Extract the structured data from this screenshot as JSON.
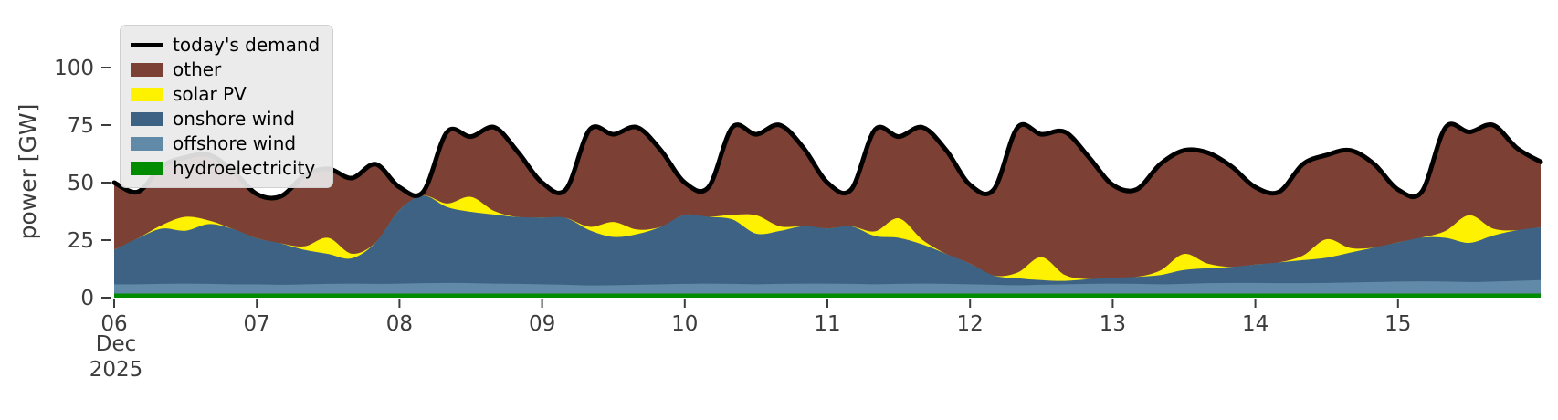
{
  "chart_data": {
    "type": "area",
    "stacked": true,
    "title": "",
    "ylabel": "power [GW]",
    "xlabel_month": "Dec",
    "xlabel_year": "2025",
    "x_start": "2025-12-06T00:00",
    "step_hours": 4,
    "n_points": 61,
    "x_tick_labels": [
      "06",
      "07",
      "08",
      "09",
      "10",
      "11",
      "12",
      "13",
      "14",
      "15"
    ],
    "y_ticks": [
      0,
      25,
      50,
      75,
      100
    ],
    "ylim": [
      0,
      123
    ],
    "grid": false,
    "legend_position": "upper left",
    "demand": {
      "name": "today's demand",
      "color": "#000000",
      "values": [
        50,
        46,
        57,
        61,
        62,
        55,
        45,
        44,
        53,
        56,
        52,
        58,
        48,
        46,
        72,
        70,
        74,
        63,
        50,
        47,
        73,
        71,
        74,
        64,
        50,
        48,
        74,
        71,
        75,
        65,
        50,
        47,
        73,
        70,
        74,
        64,
        49,
        47,
        74,
        71,
        72,
        61,
        49,
        47,
        58,
        64,
        63,
        57,
        48,
        46,
        58,
        62,
        64,
        58,
        47,
        46,
        74,
        72,
        75,
        65,
        59
      ]
    },
    "stacked_series": [
      {
        "name": "hydroelectricity",
        "color": "#008C00",
        "values": [
          1.8,
          1.8,
          1.8,
          1.8,
          1.8,
          1.8,
          1.8,
          1.8,
          1.8,
          1.8,
          1.8,
          1.8,
          1.8,
          1.8,
          1.8,
          1.8,
          1.8,
          1.8,
          1.8,
          1.8,
          1.8,
          1.8,
          1.8,
          1.8,
          1.8,
          1.8,
          1.8,
          1.8,
          1.8,
          1.8,
          1.8,
          1.8,
          1.8,
          1.8,
          1.8,
          1.8,
          1.8,
          1.8,
          1.8,
          1.8,
          1.8,
          1.8,
          1.8,
          1.8,
          1.8,
          1.8,
          1.8,
          1.8,
          1.8,
          1.8,
          1.8,
          1.8,
          1.8,
          1.8,
          1.8,
          1.8,
          1.8,
          1.8,
          1.8,
          1.8,
          1.8
        ]
      },
      {
        "name": "offshore wind",
        "color": "#6189A8",
        "values": [
          4,
          4,
          4.2,
          4.3,
          4.2,
          4,
          4,
          3.8,
          4,
          4.2,
          4.3,
          4.2,
          4.3,
          4.5,
          4.6,
          4.5,
          4.3,
          4.2,
          4,
          3.8,
          3.5,
          3.6,
          3.8,
          4,
          4.2,
          4.3,
          4.2,
          4,
          4.2,
          4.3,
          4.3,
          4.2,
          4,
          4.2,
          4.3,
          4.2,
          4,
          3.8,
          3.6,
          3.8,
          4,
          4.2,
          4.3,
          4.2,
          4,
          4.2,
          4.5,
          4.6,
          4.6,
          4.5,
          4.5,
          4.6,
          4.8,
          5,
          5.2,
          5.3,
          5.2,
          5,
          5.2,
          5.5,
          5.8
        ]
      },
      {
        "name": "onshore wind",
        "color": "#3E6283",
        "values": [
          15,
          20,
          24,
          23,
          26,
          24,
          20,
          18,
          15,
          13,
          11,
          18,
          32,
          38,
          33,
          31,
          30,
          29,
          29,
          29,
          24,
          21,
          22,
          25,
          30,
          29,
          28,
          22,
          23,
          25,
          24,
          25,
          21,
          20,
          17,
          13,
          9,
          4,
          3,
          2,
          1.5,
          2,
          2.5,
          3,
          4,
          6,
          6.5,
          7,
          8,
          9,
          10,
          11,
          13,
          15,
          17,
          19,
          19,
          17,
          20,
          22,
          23
        ]
      },
      {
        "name": "solar PV",
        "color": "#FFF200",
        "values": [
          0,
          0,
          1.5,
          6,
          1.5,
          0,
          0,
          0,
          1.5,
          7,
          2,
          0,
          0,
          0,
          1.5,
          6.5,
          1.5,
          0,
          0,
          0,
          1.5,
          6.5,
          2,
          0,
          0,
          0,
          2,
          8,
          2,
          0,
          0,
          0,
          2,
          8.5,
          2,
          0,
          0,
          0,
          2.5,
          10,
          2.5,
          0,
          0,
          0,
          2,
          7,
          2,
          0,
          0,
          0,
          2,
          8,
          2,
          0,
          0,
          0,
          3,
          12,
          3,
          0,
          0
        ]
      },
      {
        "name": "other",
        "color": "#7C4134",
        "values": [
          29.2,
          20.2,
          25.5,
          25.9,
          28.5,
          25.2,
          19.2,
          20.4,
          30.7,
          30,
          32.9,
          34,
          9.9,
          1.7,
          31.1,
          26.2,
          36.4,
          28,
          15.2,
          12.4,
          42.2,
          38.1,
          44.4,
          33.2,
          14,
          12.9,
          38,
          35.2,
          44,
          33.9,
          19.9,
          16,
          44.2,
          35.5,
          48.9,
          45,
          34.2,
          37.4,
          63.1,
          53.4,
          62.2,
          53,
          40.4,
          38,
          46.2,
          45,
          48.2,
          43.6,
          33.6,
          30.7,
          39.7,
          36.6,
          42.4,
          36.2,
          23,
          19.9,
          45,
          36.2,
          45,
          35.7,
          28.4
        ]
      }
    ]
  },
  "legend": {
    "items": [
      {
        "label": "today's demand",
        "color": "#000000",
        "kind": "line"
      },
      {
        "label": "other",
        "color": "#7C4134",
        "kind": "patch"
      },
      {
        "label": "solar PV",
        "color": "#FFF200",
        "kind": "patch"
      },
      {
        "label": "onshore wind",
        "color": "#3E6283",
        "kind": "patch"
      },
      {
        "label": "offshore wind",
        "color": "#6189A8",
        "kind": "patch"
      },
      {
        "label": "hydroelectricity",
        "color": "#008C00",
        "kind": "patch"
      }
    ]
  },
  "axes": {
    "y_label": "power [GW]",
    "x_month": "Dec",
    "x_year": "2025"
  }
}
